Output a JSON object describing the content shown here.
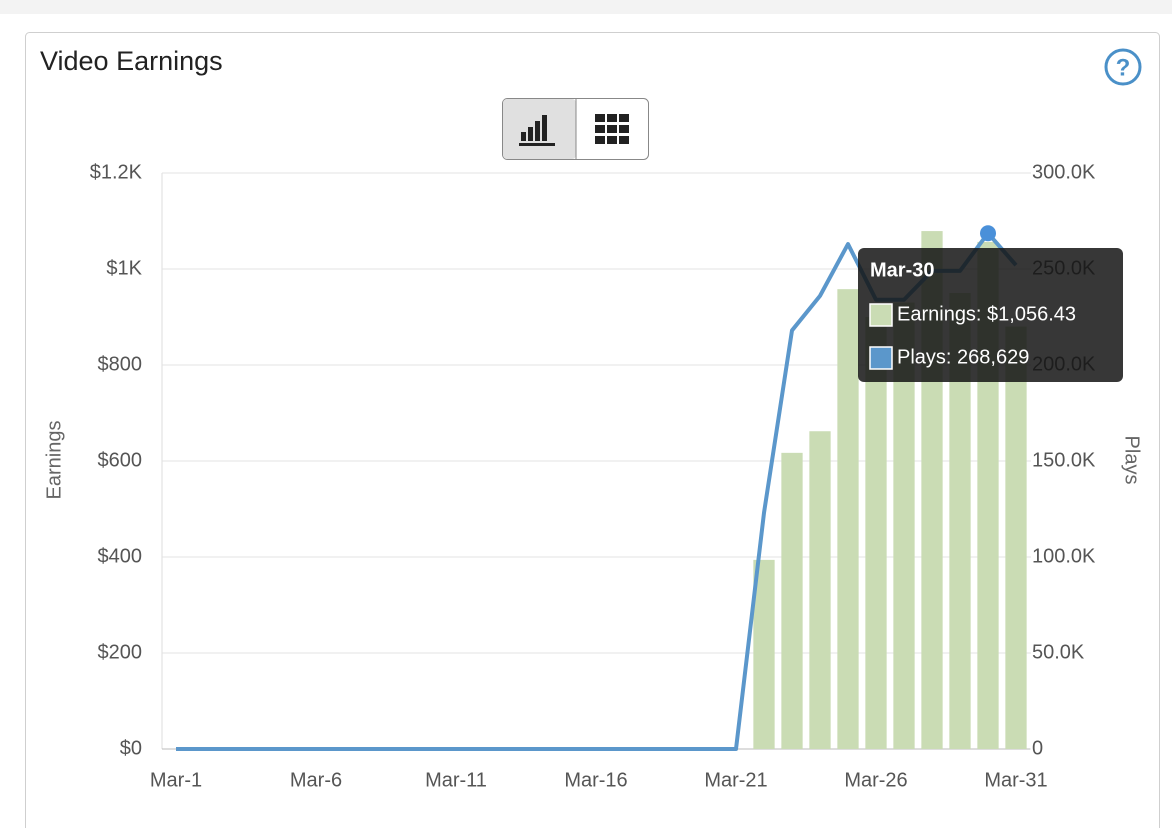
{
  "help_icon": "?",
  "chart_data": {
    "type": "bar",
    "title": "Video Earnings",
    "ylabel": "Earnings",
    "y2label": "Plays",
    "categories": [
      "Mar-1",
      null,
      null,
      null,
      null,
      "Mar-6",
      null,
      null,
      null,
      null,
      "Mar-11",
      null,
      null,
      null,
      null,
      "Mar-16",
      null,
      null,
      null,
      null,
      "Mar-21",
      null,
      null,
      null,
      null,
      "Mar-26",
      null,
      null,
      null,
      null,
      "Mar-31"
    ],
    "series": [
      {
        "type": "bar",
        "color": "#cadcb4",
        "values": [
          0,
          0,
          0,
          0,
          0,
          0,
          0,
          0,
          0,
          0,
          0,
          0,
          0,
          0,
          0,
          0,
          0,
          0,
          0,
          0,
          0,
          394,
          617,
          662,
          958,
          900,
          930,
          1079,
          950,
          1056.43,
          880
        ]
      },
      {
        "type": "line",
        "axis": "y2",
        "color": "#5b97cb",
        "values": [
          0,
          0,
          0,
          0,
          0,
          0,
          0,
          0,
          0,
          0,
          0,
          0,
          0,
          0,
          0,
          0,
          0,
          0,
          0,
          0,
          0,
          123000,
          218000,
          236000,
          263000,
          234000,
          234000,
          249000,
          249000,
          268629,
          252000
        ]
      }
    ],
    "ylim": [
      0,
      1200
    ],
    "yticks": [
      {
        "value": 0,
        "label": "$0"
      },
      {
        "value": 200,
        "label": "$200"
      },
      {
        "value": 400,
        "label": "$400"
      },
      {
        "value": 600,
        "label": "$600"
      },
      {
        "value": 800,
        "label": "$800"
      },
      {
        "value": 1000,
        "label": "$1K"
      },
      {
        "value": 1200,
        "label": "$1.2K"
      }
    ],
    "y2lim": [
      0,
      300000
    ],
    "y2ticks": [
      0,
      {
        "value": 50000,
        "label": "50.0K"
      },
      {
        "value": 100000,
        "label": "100.0K"
      },
      {
        "value": 150000,
        "label": "150.0K"
      },
      {
        "value": 200000,
        "label": "200.0K"
      },
      {
        "value": 250000,
        "label": "250.0K"
      },
      {
        "value": 300000,
        "label": "300.0K"
      }
    ],
    "grid": true,
    "tooltip": {
      "title": "Mar-30",
      "rows": [
        "Earnings: $1,056.43",
        "Plays: 268,629"
      ]
    }
  }
}
